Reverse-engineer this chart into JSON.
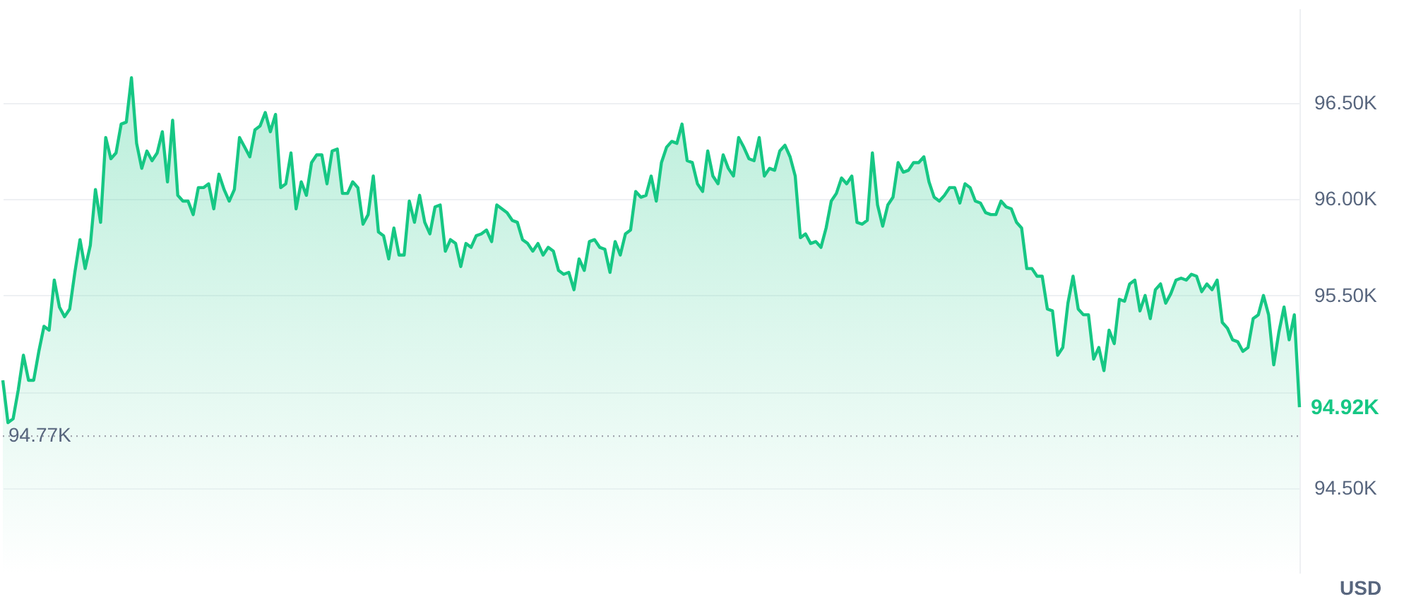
{
  "chart_data": {
    "type": "area",
    "ylabel": "USD",
    "ylim": [
      94060,
      96990
    ],
    "categories": [
      null,
      null,
      null,
      null,
      null,
      null,
      null,
      null,
      null,
      null,
      null,
      null,
      null,
      null,
      null,
      null,
      null,
      null,
      null,
      null,
      null,
      null,
      null,
      null,
      null,
      null,
      null,
      null,
      null,
      null,
      null,
      null,
      null,
      null,
      null,
      null,
      null,
      null,
      null,
      null,
      null,
      null,
      null,
      null,
      null,
      null,
      null,
      null,
      null,
      null,
      null,
      null,
      null,
      null,
      null,
      null,
      null,
      null,
      null,
      null,
      null,
      null,
      null,
      null,
      null,
      null,
      null,
      null,
      null,
      null,
      null,
      null,
      null,
      null,
      null,
      null,
      null,
      null,
      null,
      null,
      null,
      null,
      null,
      null,
      null,
      null,
      null,
      null,
      null,
      null,
      null,
      null,
      null,
      null,
      null,
      null,
      null,
      null,
      null,
      null,
      null,
      null,
      null,
      null,
      null,
      null,
      null,
      null,
      null,
      null,
      null,
      null,
      null,
      null,
      null,
      null,
      null,
      null,
      null,
      null,
      null,
      null,
      null,
      null,
      null,
      null,
      null,
      null,
      null,
      null,
      null,
      null,
      null,
      null,
      null,
      null,
      null,
      null,
      null,
      null,
      null,
      null,
      null,
      null,
      null,
      null,
      null,
      null,
      null,
      null,
      null,
      null,
      null,
      null,
      null,
      null,
      null,
      null,
      null,
      null,
      null,
      null,
      null,
      null,
      null,
      null,
      null,
      null,
      null,
      null,
      null,
      null,
      null,
      null,
      null,
      null,
      null,
      null,
      null,
      null,
      null,
      null,
      null,
      null,
      null,
      null,
      null,
      null,
      null,
      null,
      null,
      null,
      null,
      null,
      null,
      null,
      null,
      null,
      null,
      null,
      null,
      null,
      null,
      null,
      null,
      null,
      null,
      null,
      null,
      null,
      null,
      null,
      null,
      null,
      null,
      null,
      null,
      null,
      null,
      null,
      null,
      null,
      null,
      null,
      null,
      null,
      null,
      null,
      null,
      null,
      null,
      null,
      null,
      null,
      null,
      null,
      null,
      null,
      null,
      null,
      null,
      null,
      null,
      null,
      null,
      null,
      null,
      null,
      null,
      null,
      null,
      null,
      null
    ],
    "yticks": [
      {
        "value": 94500,
        "label": "94.50K"
      },
      {
        "value": 95000,
        "label": null
      },
      {
        "value": 95500,
        "label": "95.50K"
      },
      {
        "value": 96000,
        "label": "96.00K"
      },
      {
        "value": 96500,
        "label": "96.50K"
      }
    ],
    "tick_labels": "y",
    "grid": "y",
    "marker": "none",
    "line_style": "solid",
    "ref_lines": [
      {
        "axis": "y",
        "value": 94770,
        "label": "94.77K",
        "color": "#a0a4ad",
        "line_style": "dotted"
      }
    ],
    "annotations": [
      "94.92K"
    ],
    "series": [
      {
        "color": "#16c784",
        "values": [
          95060,
          94840,
          94860,
          95010,
          95190,
          95060,
          95060,
          95210,
          95340,
          95320,
          95580,
          95440,
          95390,
          95430,
          95620,
          95790,
          95640,
          95760,
          96050,
          95880,
          96320,
          96210,
          96240,
          96390,
          96400,
          96630,
          96290,
          96160,
          96250,
          96200,
          96240,
          96350,
          96090,
          96410,
          96020,
          95990,
          95990,
          95920,
          96060,
          96060,
          96080,
          95950,
          96130,
          96050,
          95990,
          96050,
          96320,
          96270,
          96220,
          96360,
          96380,
          96450,
          96350,
          96440,
          96060,
          96080,
          96240,
          95950,
          96090,
          96020,
          96190,
          96230,
          96230,
          96080,
          96250,
          96260,
          96030,
          96030,
          96090,
          96060,
          95870,
          95920,
          96120,
          95830,
          95810,
          95690,
          95850,
          95710,
          95710,
          95990,
          95880,
          96020,
          95880,
          95820,
          95960,
          95970,
          95730,
          95790,
          95770,
          95650,
          95770,
          95750,
          95810,
          95820,
          95840,
          95780,
          95970,
          95950,
          95930,
          95890,
          95880,
          95790,
          95770,
          95730,
          95770,
          95710,
          95750,
          95730,
          95630,
          95610,
          95620,
          95530,
          95690,
          95630,
          95780,
          95790,
          95750,
          95740,
          95620,
          95780,
          95710,
          95820,
          95840,
          96040,
          96010,
          96020,
          96120,
          95990,
          96190,
          96270,
          96300,
          96290,
          96390,
          96200,
          96190,
          96080,
          96040,
          96250,
          96120,
          96080,
          96230,
          96160,
          96120,
          96320,
          96270,
          96210,
          96200,
          96320,
          96120,
          96160,
          96150,
          96250,
          96280,
          96220,
          96120,
          95800,
          95820,
          95770,
          95780,
          95750,
          95850,
          95990,
          96030,
          96110,
          96080,
          96120,
          95880,
          95870,
          95890,
          96240,
          95970,
          95860,
          95970,
          96010,
          96190,
          96140,
          96150,
          96190,
          96190,
          96220,
          96090,
          96010,
          95990,
          96020,
          96060,
          96060,
          95980,
          96080,
          96060,
          95990,
          95980,
          95930,
          95920,
          95920,
          95990,
          95960,
          95950,
          95880,
          95850,
          95640,
          95640,
          95600,
          95600,
          95430,
          95420,
          95190,
          95230,
          95460,
          95600,
          95430,
          95400,
          95400,
          95170,
          95230,
          95110,
          95320,
          95250,
          95480,
          95470,
          95560,
          95580,
          95420,
          95500,
          95380,
          95530,
          95560,
          95460,
          95510,
          95580,
          95590,
          95580,
          95610,
          95600,
          95520,
          95560,
          95530,
          95580,
          95360,
          95330,
          95270,
          95260,
          95210,
          95230,
          95380,
          95400,
          95500,
          95400,
          95140,
          95310,
          95440,
          95270,
          95400,
          94920
        ]
      }
    ]
  }
}
